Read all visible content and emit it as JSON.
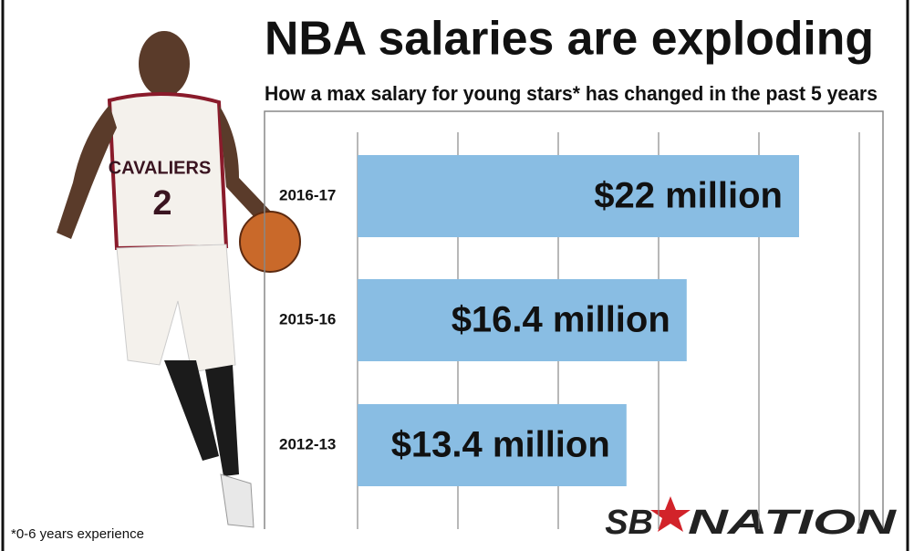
{
  "chart_data": {
    "type": "barh",
    "title": "NBA salaries are exploding",
    "subtitle": "How a max salary for young stars* has changed in the past 5 years",
    "categories": [
      "2016-17",
      "2015-16",
      "2012-13"
    ],
    "values": [
      22,
      16.4,
      13.4
    ],
    "value_labels": [
      "$22 million",
      "$16.4 million",
      "$13.4 million"
    ],
    "color": "#89bde3",
    "xlim": [
      0,
      26
    ],
    "xticks": [
      0,
      5,
      10,
      15,
      20,
      25
    ],
    "grid": true,
    "footnote": "*0-6 years experience",
    "brand": {
      "left": "SB",
      "right": "NATION"
    },
    "jersey": {
      "team": "CAVALIERS",
      "number": "2"
    }
  }
}
